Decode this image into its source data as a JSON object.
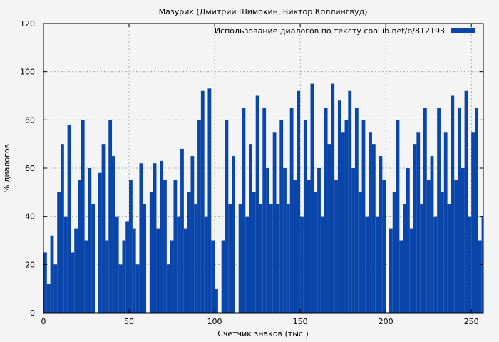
{
  "chart_data": {
    "type": "bar",
    "title": "Мазурик (Дмитрий Шимохин, Виктор Коллингвуд)",
    "xlabel": "Счетчик знаков (тыс.)",
    "ylabel": "% диалогов",
    "xlim": [
      0,
      257
    ],
    "ylim": [
      0,
      120
    ],
    "xticks": [
      0,
      50,
      100,
      150,
      200,
      250
    ],
    "yticks": [
      0,
      20,
      40,
      60,
      80,
      100,
      120
    ],
    "grid": true,
    "legend_position": "top-right",
    "series": [
      {
        "name": "Использование диалогов по тексту coollib.net/b/812193",
        "color": "#0a46aa",
        "x": [
          0,
          2,
          4,
          6,
          8,
          10,
          12,
          14,
          16,
          18,
          20,
          22,
          24,
          26,
          28,
          30,
          32,
          34,
          36,
          38,
          40,
          42,
          44,
          46,
          48,
          50,
          52,
          54,
          56,
          58,
          60,
          62,
          64,
          66,
          68,
          70,
          72,
          74,
          76,
          78,
          80,
          82,
          84,
          86,
          88,
          90,
          92,
          94,
          96,
          98,
          100,
          102,
          104,
          106,
          108,
          110,
          112,
          114,
          116,
          118,
          120,
          122,
          124,
          126,
          128,
          130,
          132,
          134,
          136,
          138,
          140,
          142,
          144,
          146,
          148,
          150,
          152,
          154,
          156,
          158,
          160,
          162,
          164,
          166,
          168,
          170,
          172,
          174,
          176,
          178,
          180,
          182,
          184,
          186,
          188,
          190,
          192,
          194,
          196,
          198,
          200,
          202,
          204,
          206,
          208,
          210,
          212,
          214,
          216,
          218,
          220,
          222,
          224,
          226,
          228,
          230,
          232,
          234,
          236,
          238,
          240,
          242,
          244,
          246,
          248,
          250,
          252,
          254,
          256
        ],
        "values": [
          25,
          12,
          32,
          20,
          50,
          70,
          40,
          78,
          25,
          35,
          55,
          80,
          30,
          60,
          45,
          0,
          58,
          70,
          30,
          80,
          65,
          40,
          20,
          30,
          38,
          55,
          35,
          20,
          62,
          45,
          0,
          50,
          62,
          35,
          63,
          55,
          20,
          30,
          55,
          40,
          68,
          35,
          50,
          65,
          45,
          80,
          92,
          40,
          93,
          30,
          10,
          0,
          30,
          80,
          45,
          65,
          0,
          45,
          85,
          40,
          70,
          50,
          90,
          45,
          85,
          60,
          45,
          75,
          45,
          80,
          60,
          45,
          85,
          55,
          92,
          40,
          80,
          55,
          95,
          50,
          60,
          40,
          85,
          70,
          95,
          55,
          88,
          75,
          80,
          92,
          60,
          85,
          50,
          80,
          40,
          75,
          70,
          40,
          65,
          55,
          0,
          35,
          50,
          80,
          30,
          45,
          60,
          35,
          70,
          75,
          45,
          85,
          55,
          65,
          40,
          85,
          50,
          75,
          45,
          90,
          55,
          85,
          60,
          92,
          40,
          75,
          85,
          30,
          40
        ]
      }
    ]
  }
}
